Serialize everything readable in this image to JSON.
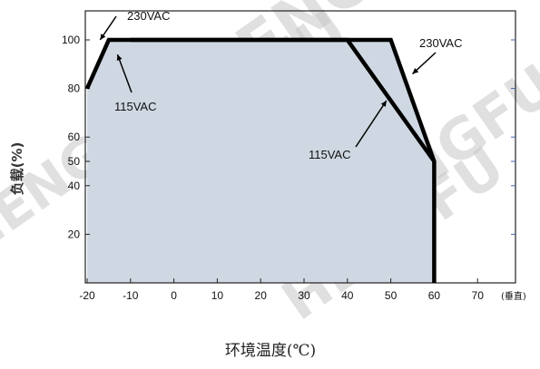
{
  "chart_data": {
    "type": "area",
    "title": "",
    "xlabel": "环境温度(℃)",
    "ylabel": "负载(%)",
    "x_unit_note": "(垂直)",
    "xlim": [
      -22,
      75
    ],
    "ylim": [
      0,
      106
    ],
    "x_ticks": [
      -20,
      -10,
      0,
      10,
      20,
      30,
      40,
      50,
      60,
      70
    ],
    "y_ticks": [
      20,
      40,
      50,
      60,
      80,
      100
    ],
    "series": [
      {
        "name": "230VAC",
        "x": [
          -10,
          50,
          60,
          60
        ],
        "y": [
          100,
          100,
          50,
          0
        ]
      },
      {
        "name": "115VAC",
        "x": [
          -20,
          -15,
          40,
          60
        ],
        "y": [
          80,
          100,
          100,
          50
        ]
      }
    ],
    "fill_color": "#cfd8e2",
    "line_color": "#000000",
    "annotations": [
      {
        "text": "230VAC",
        "x": -7,
        "y": 106
      },
      {
        "text": "115VAC",
        "x": -5,
        "y": 86
      },
      {
        "text": "230VAC",
        "x": 58,
        "y": 97
      },
      {
        "text": "115VAC",
        "x": 43,
        "y": 51
      }
    ],
    "watermark": "HENGFU"
  }
}
